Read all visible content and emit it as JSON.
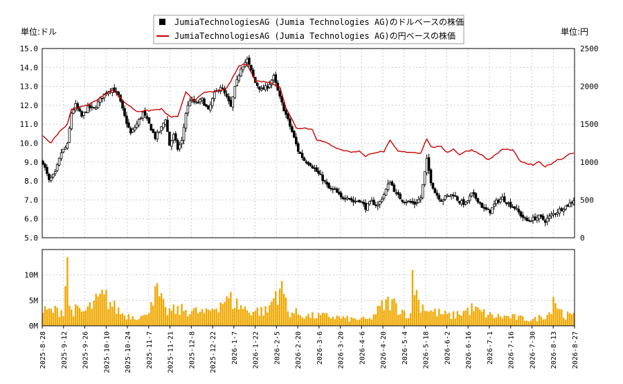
{
  "chart_data": {
    "type": "candlestick_with_volume",
    "legend": {
      "placement": "top-center",
      "entries": [
        {
          "label": "JumiaTechnologiesAG (Jumia Technologies AG)のドルベースの株価",
          "marker": "square",
          "color": "#000000"
        },
        {
          "label": "JumiaTechnologiesAG (Jumia Technologies AG)の円ベースの株価",
          "marker": "line",
          "color": "#cc0000"
        }
      ]
    },
    "left_axis": {
      "unit_label": "単位:ドル",
      "ylim": [
        5.0,
        15.0
      ],
      "ticks": [
        "5.0",
        "6.0",
        "7.0",
        "8.0",
        "9.0",
        "10.0",
        "11.0",
        "12.0",
        "13.0",
        "14.0",
        "15.0"
      ]
    },
    "right_axis": {
      "unit_label": "単位:円",
      "ylim": [
        0,
        2500
      ],
      "ticks": [
        "0",
        "500",
        "1000",
        "1500",
        "2000",
        "2500"
      ]
    },
    "volume_axis": {
      "ylim": [
        0,
        15000000
      ],
      "ticks": [
        "0M",
        "5M",
        "10M"
      ]
    },
    "x_tick_labels": [
      "2025-8-28",
      "2025-9-12",
      "2025-9-26",
      "2025-10-10",
      "2025-10-24",
      "2025-11-7",
      "2025-11-21",
      "2025-12-8",
      "2025-12-22",
      "2026-1-7",
      "2026-1-22",
      "2026-2-5",
      "2026-2-20",
      "2026-3-6",
      "2026-3-20",
      "2026-4-6",
      "2026-4-20",
      "2026-5-4",
      "2026-5-18",
      "2026-6-2",
      "2026-6-16",
      "2026-7-1",
      "2026-7-16",
      "2026-7-30",
      "2026-8-13",
      "2026-8-27"
    ],
    "grid": true,
    "usd_price_anchors": [
      [
        0,
        9.0
      ],
      [
        3,
        8.0
      ],
      [
        6,
        8.4
      ],
      [
        9,
        9.5
      ],
      [
        12,
        9.9
      ],
      [
        14,
        11.6
      ],
      [
        16,
        12.0
      ],
      [
        19,
        11.4
      ],
      [
        22,
        11.9
      ],
      [
        25,
        11.8
      ],
      [
        28,
        12.3
      ],
      [
        31,
        12.7
      ],
      [
        34,
        12.9
      ],
      [
        37,
        12.5
      ],
      [
        40,
        11.4
      ],
      [
        43,
        10.5
      ],
      [
        46,
        11.0
      ],
      [
        49,
        11.6
      ],
      [
        52,
        11.0
      ],
      [
        55,
        10.3
      ],
      [
        58,
        10.8
      ],
      [
        60,
        11.3
      ],
      [
        62,
        9.9
      ],
      [
        64,
        10.4
      ],
      [
        66,
        9.7
      ],
      [
        68,
        10.1
      ],
      [
        70,
        11.6
      ],
      [
        72,
        12.3
      ],
      [
        75,
        12.1
      ],
      [
        78,
        12.3
      ],
      [
        81,
        11.7
      ],
      [
        84,
        12.6
      ],
      [
        87,
        13.0
      ],
      [
        90,
        12.4
      ],
      [
        92,
        11.9
      ],
      [
        94,
        12.9
      ],
      [
        97,
        14.0
      ],
      [
        100,
        14.4
      ],
      [
        102,
        13.8
      ],
      [
        104,
        13.2
      ],
      [
        107,
        12.8
      ],
      [
        110,
        13.0
      ],
      [
        113,
        13.5
      ],
      [
        116,
        12.4
      ],
      [
        119,
        11.5
      ],
      [
        122,
        10.6
      ],
      [
        125,
        9.6
      ],
      [
        128,
        9.1
      ],
      [
        131,
        8.9
      ],
      [
        134,
        8.5
      ],
      [
        137,
        8.1
      ],
      [
        140,
        7.6
      ],
      [
        143,
        7.5
      ],
      [
        146,
        7.1
      ],
      [
        149,
        7.2
      ],
      [
        152,
        6.9
      ],
      [
        155,
        7.0
      ],
      [
        158,
        6.6
      ],
      [
        161,
        6.9
      ],
      [
        164,
        6.7
      ],
      [
        167,
        7.3
      ],
      [
        170,
        8.0
      ],
      [
        173,
        7.3
      ],
      [
        176,
        7.0
      ],
      [
        179,
        6.9
      ],
      [
        182,
        6.8
      ],
      [
        185,
        7.1
      ],
      [
        188,
        9.1
      ],
      [
        190,
        8.0
      ],
      [
        192,
        7.4
      ],
      [
        195,
        7.0
      ],
      [
        198,
        7.2
      ],
      [
        201,
        7.3
      ],
      [
        204,
        6.9
      ],
      [
        207,
        6.8
      ],
      [
        210,
        7.3
      ],
      [
        213,
        7.0
      ],
      [
        216,
        6.5
      ],
      [
        219,
        6.4
      ],
      [
        222,
        6.9
      ],
      [
        225,
        7.1
      ],
      [
        228,
        6.8
      ],
      [
        231,
        6.6
      ],
      [
        234,
        6.2
      ],
      [
        237,
        5.9
      ],
      [
        240,
        6.0
      ],
      [
        243,
        6.1
      ],
      [
        246,
        5.9
      ],
      [
        249,
        6.2
      ],
      [
        252,
        6.4
      ],
      [
        255,
        6.6
      ],
      [
        258,
        6.8
      ],
      [
        260,
        7.0
      ]
    ],
    "jpy_price_anchors": [
      [
        0,
        1350
      ],
      [
        4,
        1250
      ],
      [
        8,
        1400
      ],
      [
        12,
        1500
      ],
      [
        14,
        1700
      ],
      [
        22,
        1750
      ],
      [
        28,
        1850
      ],
      [
        34,
        1960
      ],
      [
        40,
        1790
      ],
      [
        46,
        1670
      ],
      [
        52,
        1680
      ],
      [
        58,
        1700
      ],
      [
        62,
        1600
      ],
      [
        66,
        1600
      ],
      [
        70,
        1920
      ],
      [
        74,
        1810
      ],
      [
        78,
        1910
      ],
      [
        84,
        1930
      ],
      [
        90,
        1970
      ],
      [
        96,
        2270
      ],
      [
        100,
        2300
      ],
      [
        104,
        2070
      ],
      [
        110,
        2060
      ],
      [
        116,
        2000
      ],
      [
        119,
        1710
      ],
      [
        122,
        1570
      ],
      [
        124,
        1450
      ],
      [
        128,
        1450
      ],
      [
        132,
        1430
      ],
      [
        134,
        1300
      ],
      [
        140,
        1240
      ],
      [
        146,
        1160
      ],
      [
        152,
        1130
      ],
      [
        155,
        1150
      ],
      [
        158,
        1070
      ],
      [
        161,
        1120
      ],
      [
        167,
        1140
      ],
      [
        170,
        1280
      ],
      [
        174,
        1140
      ],
      [
        180,
        1130
      ],
      [
        185,
        1120
      ],
      [
        188,
        1310
      ],
      [
        190,
        1200
      ],
      [
        195,
        1200
      ],
      [
        198,
        1130
      ],
      [
        201,
        1170
      ],
      [
        204,
        1100
      ],
      [
        207,
        1140
      ],
      [
        210,
        1160
      ],
      [
        214,
        1110
      ],
      [
        218,
        1030
      ],
      [
        222,
        1100
      ],
      [
        225,
        1170
      ],
      [
        230,
        1160
      ],
      [
        234,
        1000
      ],
      [
        240,
        960
      ],
      [
        243,
        1000
      ],
      [
        246,
        940
      ],
      [
        249,
        980
      ],
      [
        252,
        1030
      ],
      [
        255,
        1050
      ],
      [
        258,
        1120
      ],
      [
        260,
        1110
      ]
    ],
    "volume_anchors_millions": [
      [
        0,
        3.0
      ],
      [
        10,
        3.2
      ],
      [
        12,
        13.5
      ],
      [
        13,
        3.5
      ],
      [
        20,
        2.8
      ],
      [
        30,
        6.2
      ],
      [
        35,
        3.8
      ],
      [
        40,
        2.2
      ],
      [
        50,
        1.8
      ],
      [
        55,
        7.8
      ],
      [
        60,
        3.0
      ],
      [
        70,
        3.3
      ],
      [
        80,
        2.6
      ],
      [
        90,
        5.8
      ],
      [
        100,
        3.2
      ],
      [
        110,
        3.0
      ],
      [
        114,
        6.8
      ],
      [
        117,
        8.8
      ],
      [
        120,
        3.0
      ],
      [
        130,
        2.0
      ],
      [
        140,
        2.0
      ],
      [
        150,
        1.4
      ],
      [
        160,
        1.3
      ],
      [
        166,
        4.0
      ],
      [
        170,
        5.0
      ],
      [
        180,
        2.0
      ],
      [
        181,
        11.0
      ],
      [
        184,
        4.8
      ],
      [
        190,
        3.0
      ],
      [
        200,
        2.0
      ],
      [
        210,
        3.5
      ],
      [
        220,
        2.0
      ],
      [
        230,
        1.8
      ],
      [
        240,
        1.2
      ],
      [
        248,
        2.6
      ],
      [
        250,
        5.7
      ],
      [
        255,
        2.2
      ],
      [
        260,
        2.0
      ]
    ]
  }
}
